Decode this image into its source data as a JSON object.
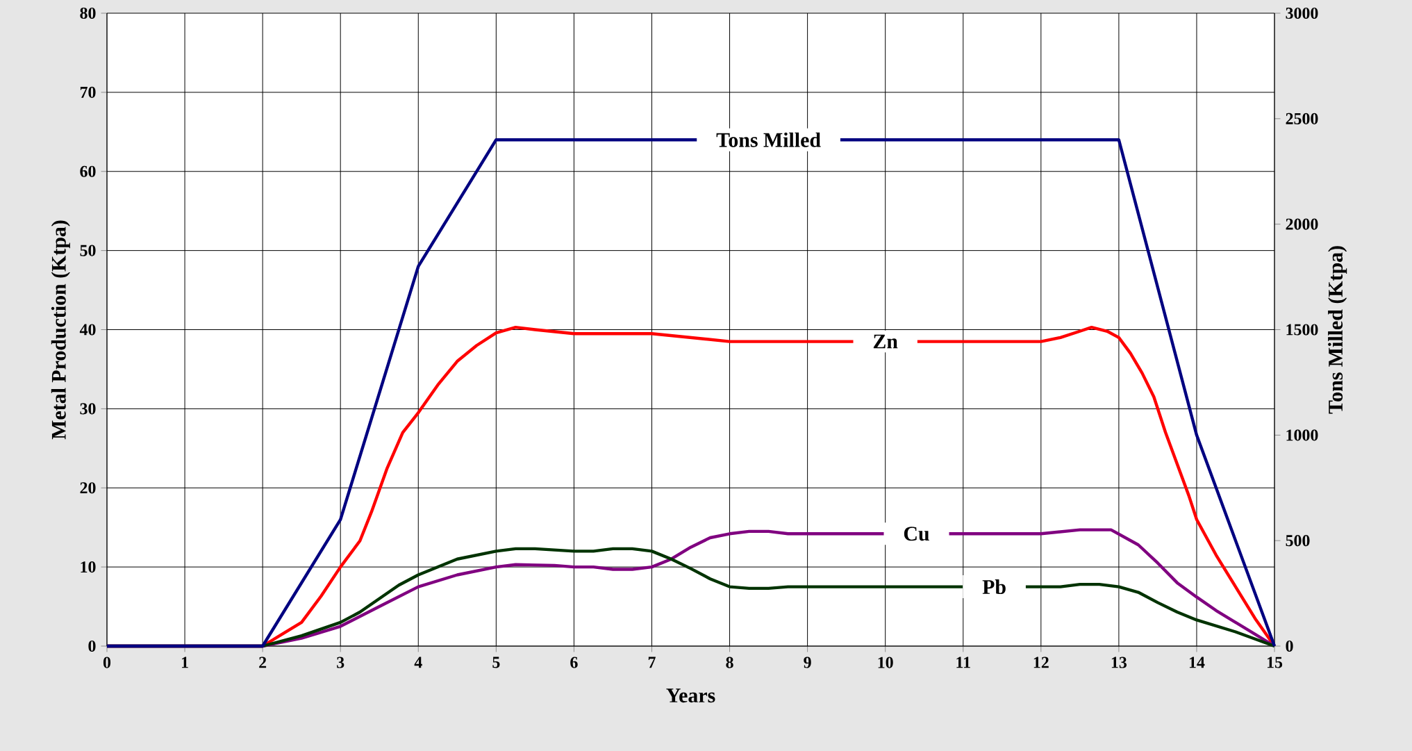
{
  "chart_data": {
    "type": "line",
    "xlabel": "Years",
    "ylabel": "Metal Production (Ktpa)",
    "y2label": "Tons Milled  (Ktpa)",
    "xlim": [
      0,
      15
    ],
    "xticks": [
      0,
      1,
      2,
      3,
      4,
      5,
      6,
      7,
      8,
      9,
      10,
      11,
      12,
      13,
      14,
      15
    ],
    "ylim": [
      0,
      80
    ],
    "yticks": [
      0,
      10,
      20,
      30,
      40,
      50,
      60,
      70,
      80
    ],
    "y2lim": [
      0,
      3000
    ],
    "y2ticks": [
      0,
      500,
      1000,
      1500,
      2000,
      2500,
      3000
    ],
    "grid": true,
    "series": [
      {
        "name": "Tons Milled",
        "color": "#000080",
        "axis": "y2",
        "x": [
          0,
          2,
          3,
          4,
          5,
          13,
          14,
          15
        ],
        "values": [
          0,
          0,
          600,
          1800,
          2400,
          2400,
          1000,
          0
        ]
      },
      {
        "name": "Zn",
        "color": "#ff0000",
        "x": [
          0,
          2,
          2.25,
          2.5,
          2.75,
          3,
          3.25,
          3.4,
          3.6,
          3.8,
          4,
          4.25,
          4.5,
          4.75,
          5,
          5.25,
          5.5,
          6,
          7,
          8,
          12,
          12.25,
          12.5,
          12.65,
          12.85,
          13,
          13.15,
          13.3,
          13.45,
          13.6,
          13.75,
          13.9,
          14,
          14.25,
          14.5,
          14.75,
          15
        ],
        "values": [
          0,
          0,
          1.5,
          3,
          6.3,
          10,
          13.3,
          17,
          22.5,
          27,
          29.5,
          33,
          36,
          38,
          39.6,
          40.3,
          40,
          39.5,
          39.5,
          38.5,
          38.5,
          39,
          39.8,
          40.3,
          39.8,
          39,
          37,
          34.5,
          31.5,
          27,
          23,
          19,
          16,
          11.5,
          7.5,
          3.5,
          0
        ]
      },
      {
        "name": "Cu",
        "color": "#800080",
        "x": [
          0,
          2,
          2.5,
          3,
          3.5,
          4,
          4.5,
          5,
          5.25,
          5.75,
          6,
          6.25,
          6.5,
          6.75,
          7,
          7.25,
          7.5,
          7.75,
          8,
          8.25,
          8.5,
          8.75,
          12,
          12.5,
          12.9,
          13.25,
          13.5,
          13.75,
          14,
          14.25,
          14.5,
          14.75,
          15
        ],
        "values": [
          0,
          0,
          1,
          2.5,
          5,
          7.5,
          9,
          10,
          10.3,
          10.2,
          10,
          10,
          9.7,
          9.7,
          10,
          11,
          12.5,
          13.7,
          14.2,
          14.5,
          14.5,
          14.2,
          14.2,
          14.7,
          14.7,
          12.8,
          10.5,
          8,
          6.2,
          4.5,
          3,
          1.5,
          0
        ]
      },
      {
        "name": "Pb",
        "color": "#003300",
        "x": [
          0,
          2,
          2.5,
          3,
          3.25,
          3.5,
          3.75,
          4,
          4.5,
          5,
          5.25,
          5.5,
          6,
          6.25,
          6.5,
          6.75,
          7,
          7.25,
          7.5,
          7.75,
          8,
          8.25,
          8.5,
          8.75,
          12.25,
          12.5,
          12.75,
          13,
          13.25,
          13.5,
          13.75,
          14,
          14.5,
          15
        ],
        "values": [
          0,
          0,
          1.3,
          3,
          4.3,
          6,
          7.7,
          9,
          11,
          12,
          12.3,
          12.3,
          12,
          12,
          12.3,
          12.3,
          12,
          11,
          9.8,
          8.5,
          7.5,
          7.3,
          7.3,
          7.5,
          7.5,
          7.8,
          7.8,
          7.5,
          6.8,
          5.5,
          4.3,
          3.3,
          1.8,
          0
        ]
      }
    ]
  }
}
